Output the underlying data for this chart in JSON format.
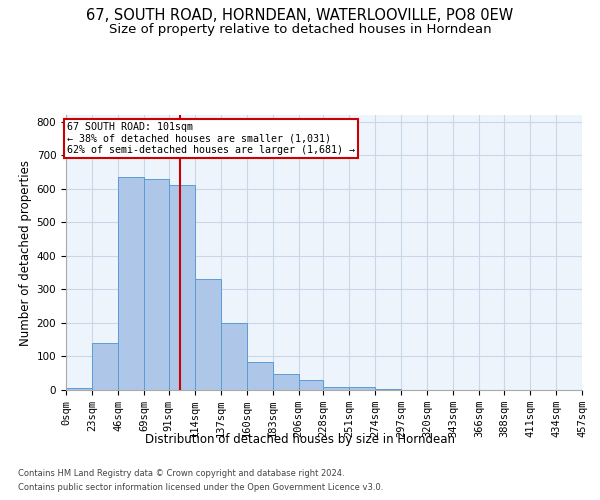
{
  "title": "67, SOUTH ROAD, HORNDEAN, WATERLOOVILLE, PO8 0EW",
  "subtitle": "Size of property relative to detached houses in Horndean",
  "xlabel": "Distribution of detached houses by size in Horndean",
  "ylabel": "Number of detached properties",
  "footer1": "Contains HM Land Registry data © Crown copyright and database right 2024.",
  "footer2": "Contains public sector information licensed under the Open Government Licence v3.0.",
  "bin_labels": [
    "0sqm",
    "23sqm",
    "46sqm",
    "69sqm",
    "91sqm",
    "114sqm",
    "137sqm",
    "160sqm",
    "183sqm",
    "206sqm",
    "228sqm",
    "251sqm",
    "274sqm",
    "297sqm",
    "320sqm",
    "343sqm",
    "366sqm",
    "388sqm",
    "411sqm",
    "434sqm",
    "457sqm"
  ],
  "bar_values": [
    5,
    140,
    635,
    630,
    610,
    330,
    200,
    83,
    48,
    30,
    10,
    10,
    2,
    1,
    0,
    0,
    0,
    0,
    0,
    0
  ],
  "bin_edges": [
    0,
    23,
    46,
    69,
    91,
    114,
    137,
    160,
    183,
    206,
    228,
    251,
    274,
    297,
    320,
    343,
    366,
    388,
    411,
    434,
    457
  ],
  "bar_color": "#aec6e8",
  "bar_edge_color": "#5b9bd5",
  "property_size": 101,
  "vline_color": "#cc0000",
  "annotation_line1": "67 SOUTH ROAD: 101sqm",
  "annotation_line2": "← 38% of detached houses are smaller (1,031)",
  "annotation_line3": "62% of semi-detached houses are larger (1,681) →",
  "annotation_box_color": "#cc0000",
  "ylim": [
    0,
    820
  ],
  "yticks": [
    0,
    100,
    200,
    300,
    400,
    500,
    600,
    700,
    800
  ],
  "grid_color": "#c8d8e8",
  "bg_color": "#eef4fb",
  "title_fontsize": 10.5,
  "subtitle_fontsize": 9.5,
  "axis_label_fontsize": 8.5,
  "tick_fontsize": 7.5,
  "footer_fontsize": 6.0
}
